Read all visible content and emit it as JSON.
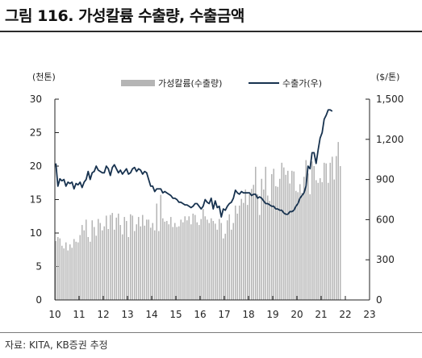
{
  "title": "그림 116. 가성칼륨 수출량, 수출금액",
  "source": "자료: KITA, KB증권 추정",
  "colors": {
    "bars": "#b5b5b5",
    "line": "#17324f",
    "axis": "#222222"
  },
  "chart_data": {
    "type": "bar+line",
    "title": "그림 116. 가성칼륨 수출량, 수출금액",
    "y_left_label": "(천톤)",
    "y_right_label": "($/톤)",
    "y_left_ticks": [
      "30",
      "25",
      "20",
      "15",
      "10",
      "5",
      "0"
    ],
    "y_right_ticks": [
      "1,500",
      "1,200",
      "900",
      "600",
      "300",
      "0"
    ],
    "x_ticks": [
      "10",
      "11",
      "12",
      "13",
      "14",
      "15",
      "16",
      "17",
      "18",
      "19",
      "20",
      "21",
      "22",
      "23"
    ],
    "ylim_left": [
      0,
      30
    ],
    "ylim_right": [
      0,
      1500
    ],
    "x_range": [
      2010,
      2023
    ],
    "legend_position": "top-center",
    "series": [
      {
        "name": "가성칼륨(수출량)",
        "type": "bar",
        "axis": "left",
        "values": [
          8.8,
          9.4,
          9.2,
          8.1,
          7.7,
          8.6,
          7.4,
          8.3,
          7.8,
          9.1,
          8.7,
          8.6,
          9.7,
          11.2,
          10.4,
          12.0,
          9.4,
          8.7,
          11.9,
          10.9,
          9.6,
          12.1,
          11.5,
          10.4,
          11.0,
          12.6,
          10.6,
          12.7,
          13.0,
          10.5,
          12.3,
          12.9,
          11.2,
          9.8,
          12.4,
          11.8,
          9.4,
          12.8,
          12.6,
          10.3,
          11.3,
          12.4,
          11.0,
          12.7,
          11.1,
          12.0,
          12.0,
          10.8,
          11.5,
          10.4,
          14.4,
          10.3,
          15.7,
          12.2,
          11.7,
          11.8,
          11.3,
          12.4,
          10.9,
          11.5,
          10.9,
          11.0,
          12.0,
          11.6,
          12.5,
          11.9,
          12.5,
          11.3,
          12.9,
          12.7,
          11.6,
          11.2,
          12.1,
          13.6,
          12.5,
          12.0,
          11.5,
          12.2,
          11.8,
          11.4,
          10.5,
          12.1,
          11.5,
          9.2,
          9.9,
          11.9,
          12.8,
          10.5,
          11.5,
          14.1,
          12.9,
          14.1,
          15.1,
          14.5,
          16.5,
          14.2,
          15.8,
          16.6,
          17.2,
          19.9,
          15.8,
          12.7,
          18.1,
          16.5,
          19.9,
          15.6,
          14.8,
          18.8,
          19.6,
          17.0,
          16.9,
          18.1,
          20.5,
          19.8,
          18.7,
          19.3,
          17.4,
          19.3,
          19.2,
          16.3,
          16.1,
          17.3,
          16.0,
          18.4,
          20.9,
          18.9,
          15.8,
          20.7,
          20.0,
          17.9,
          17.5,
          18.2,
          17.6,
          20.5,
          20.4,
          17.5,
          20.5,
          21.4,
          18.0,
          21.5,
          23.6,
          20.0
        ]
      },
      {
        "name": "수출가(우)",
        "type": "line",
        "axis": "right",
        "values": [
          1020,
          850,
          905,
          890,
          900,
          850,
          880,
          870,
          880,
          830,
          870,
          860,
          880,
          840,
          880,
          900,
          960,
          900,
          950,
          960,
          1000,
          970,
          960,
          950,
          950,
          1000,
          980,
          930,
          990,
          1010,
          980,
          950,
          970,
          940,
          960,
          980,
          940,
          950,
          980,
          990,
          960,
          980,
          970,
          940,
          960,
          950,
          900,
          850,
          850,
          810,
          830,
          830,
          830,
          800,
          810,
          800,
          790,
          780,
          760,
          760,
          750,
          730,
          730,
          720,
          710,
          710,
          700,
          690,
          700,
          720,
          720,
          700,
          680,
          700,
          750,
          730,
          720,
          760,
          680,
          740,
          690,
          700,
          620,
          680,
          670,
          700,
          720,
          730,
          760,
          820,
          800,
          790,
          810,
          800,
          800,
          800,
          800,
          780,
          790,
          790,
          760,
          770,
          760,
          740,
          720,
          720,
          710,
          700,
          700,
          680,
          680,
          670,
          670,
          650,
          640,
          640,
          660,
          660,
          670,
          700,
          720,
          760,
          780,
          800,
          850,
          1000,
          980,
          1100,
          1100,
          1020,
          1120,
          1210,
          1250,
          1350,
          1380,
          1420,
          1420,
          1410
        ]
      }
    ]
  }
}
